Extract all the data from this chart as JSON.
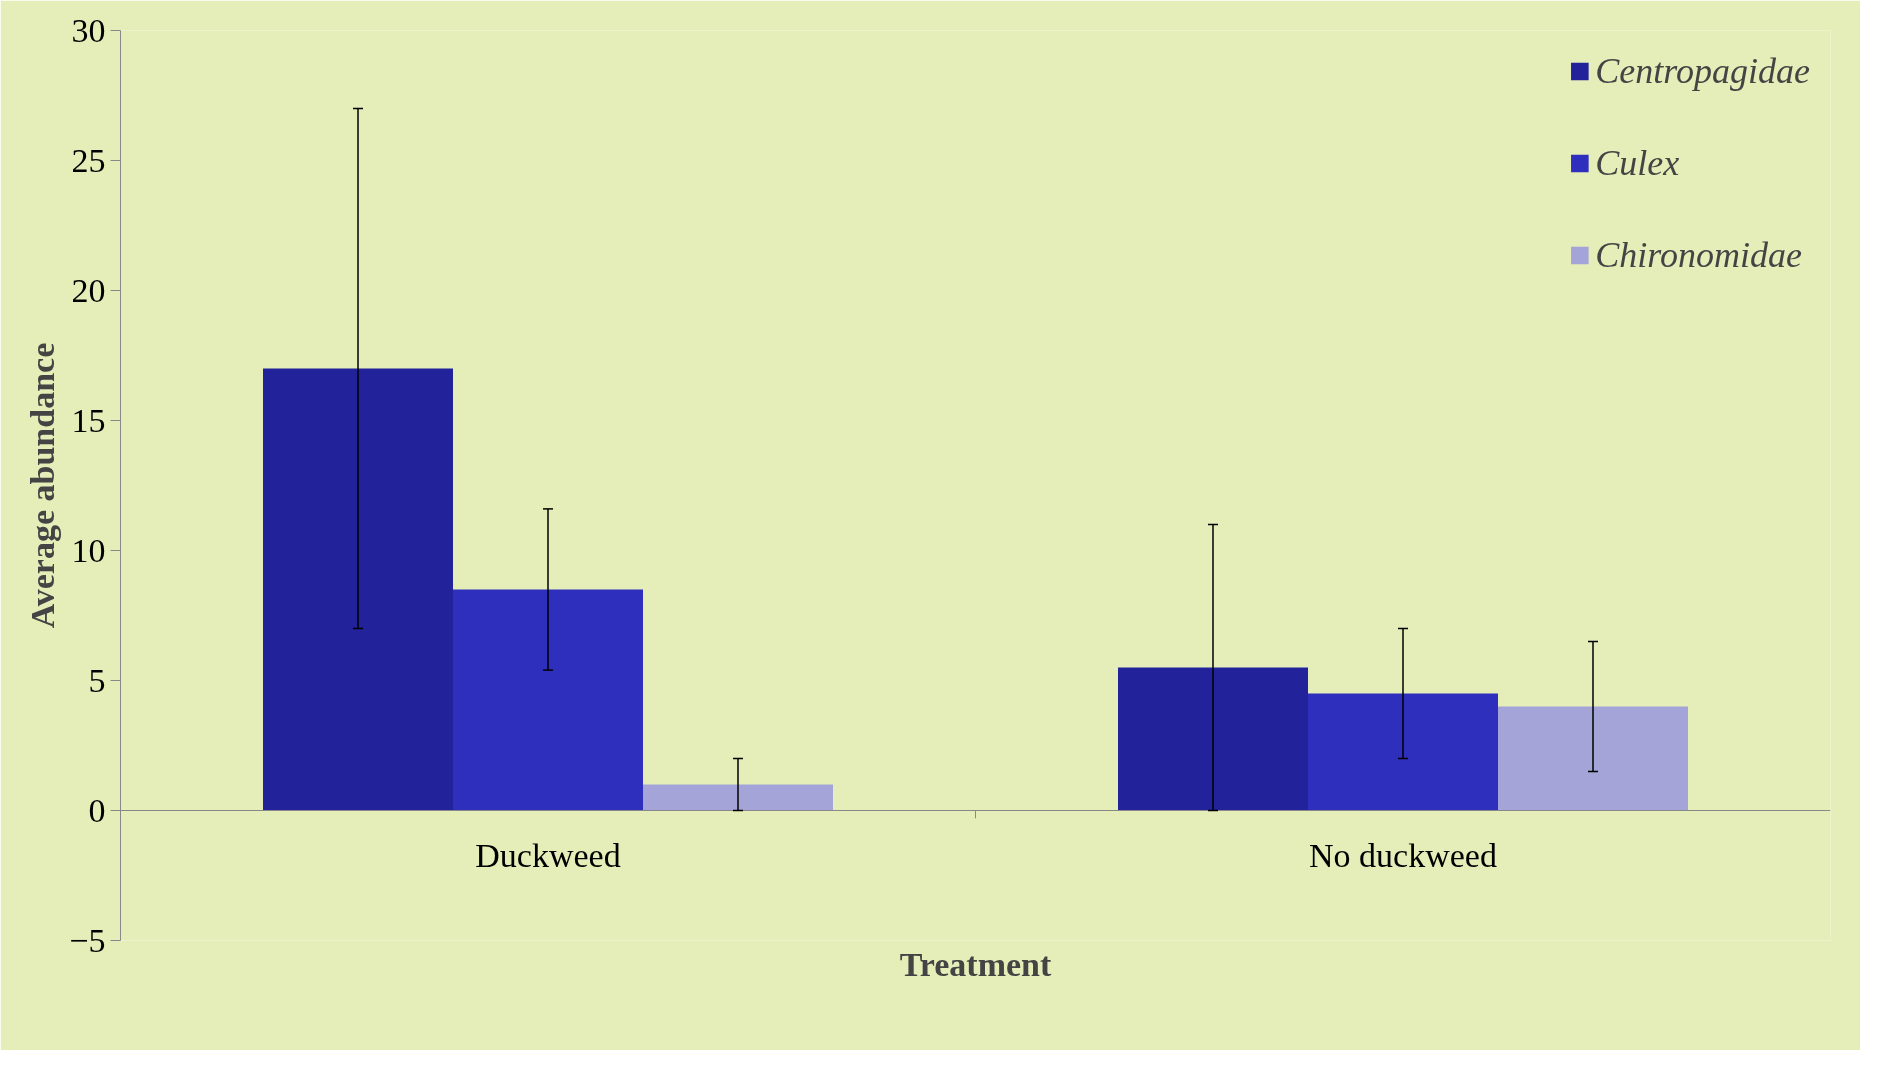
{
  "chart_data": {
    "type": "bar",
    "xlabel": "Treatment",
    "ylabel": "Average abundance",
    "categories": [
      "Duckweed",
      "No duckweed"
    ],
    "series": [
      {
        "name": "Centropagidae",
        "color": "#22229a",
        "values": [
          17,
          5.5
        ],
        "errors": [
          10,
          5.5
        ]
      },
      {
        "name": "Culex",
        "color": "#2f2fbd",
        "values": [
          8.5,
          4.5
        ],
        "errors": [
          3.1,
          2.5
        ]
      },
      {
        "name": "Chironomidae",
        "color": "#a4a4d8",
        "values": [
          1,
          4
        ],
        "errors": [
          1,
          2.5
        ]
      }
    ],
    "ylim": [
      -5,
      30
    ],
    "yticks": [
      -5,
      0,
      5,
      10,
      15,
      20,
      25,
      30
    ],
    "grid": false,
    "legend": "top right"
  }
}
